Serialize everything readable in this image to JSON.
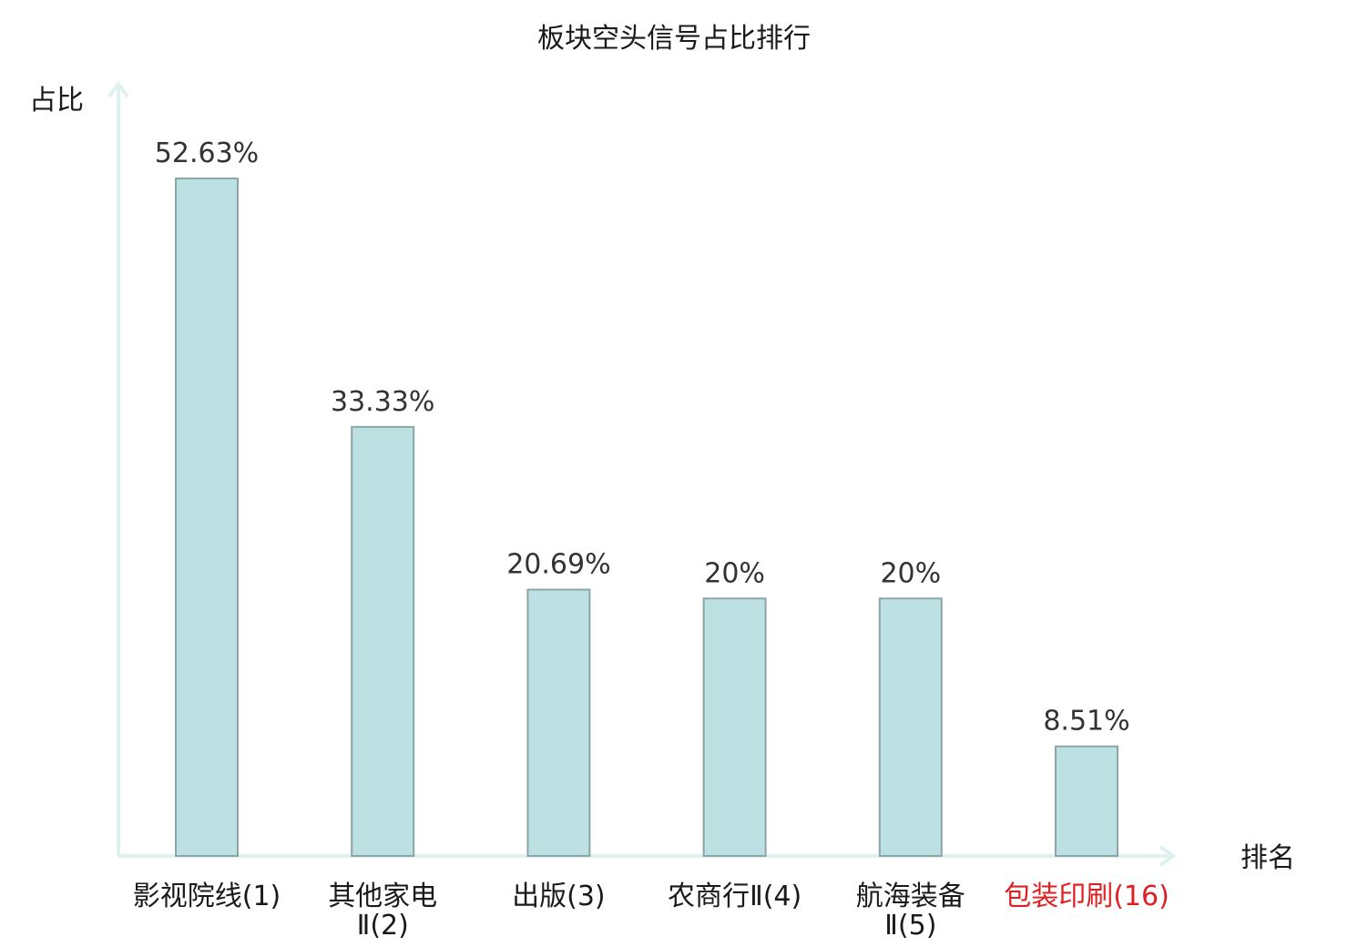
{
  "chart_data": {
    "type": "bar",
    "title": "板块空头信号占比排行",
    "ylabel": "占比",
    "xlabel": "排名",
    "categories": [
      [
        "影视院线(1)"
      ],
      [
        "其他家电",
        "Ⅱ(2)"
      ],
      [
        "出版(3)"
      ],
      [
        "农商行Ⅱ(4)"
      ],
      [
        "航海装备",
        "Ⅱ(5)"
      ],
      [
        "包装印刷(16)"
      ]
    ],
    "values": [
      52.63,
      33.33,
      20.69,
      20,
      20,
      8.51
    ],
    "value_labels": [
      "52.63%",
      "33.33%",
      "20.69%",
      "20%",
      "20%",
      "8.51%"
    ],
    "highlight_index": 5,
    "ylim": [
      0,
      52.63
    ],
    "grid": false,
    "legend": "none",
    "colors": {
      "bar_fill": "#bde0e3",
      "bar_stroke": "#8aa6a9",
      "axis": "#dff1ee",
      "highlight_label": "#e02020",
      "text": "#1a1a1a"
    }
  }
}
